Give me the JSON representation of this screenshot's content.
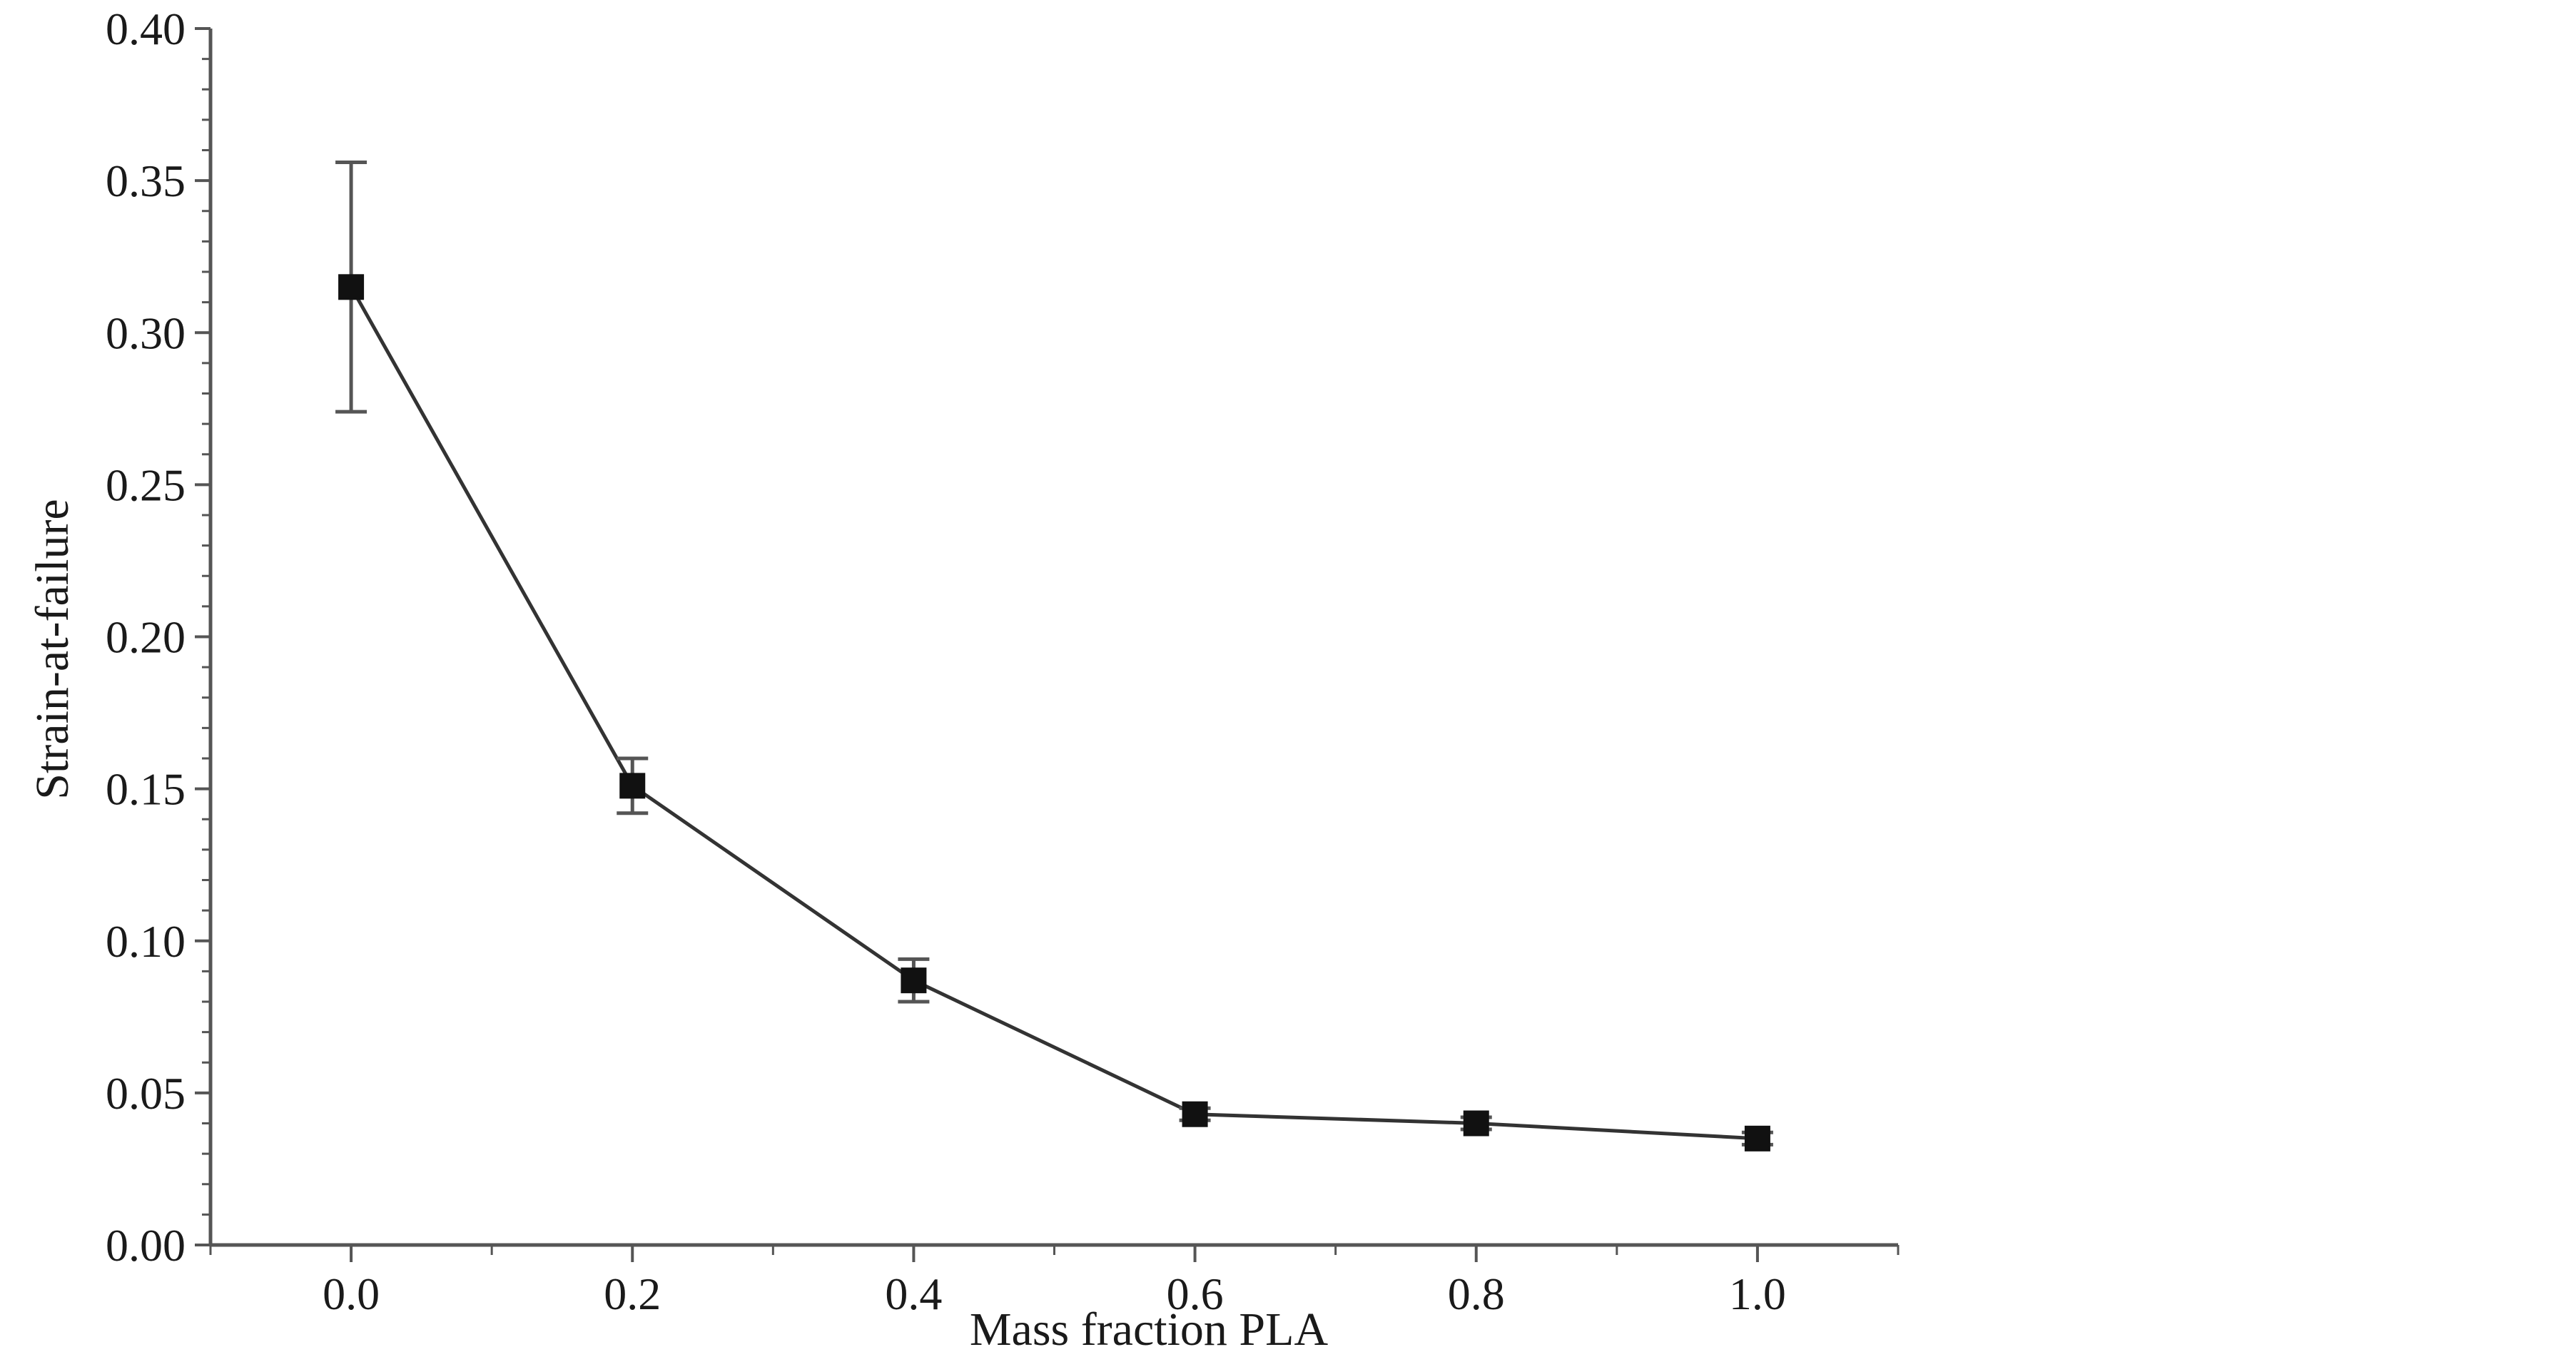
{
  "chart_data": {
    "type": "line",
    "title": "",
    "xlabel": "Mass fraction PLA",
    "ylabel": "Strain-at-failure",
    "xlim": [
      -0.1,
      1.1
    ],
    "ylim": [
      0.0,
      0.4
    ],
    "x_ticks": [
      "0.0",
      "0.2",
      "0.4",
      "0.6",
      "0.8",
      "1.0"
    ],
    "y_ticks": [
      "0.00",
      "0.05",
      "0.10",
      "0.15",
      "0.20",
      "0.25",
      "0.30",
      "0.35",
      "0.40"
    ],
    "grid": false,
    "legend": "none",
    "series": [
      {
        "x": [
          0.0,
          0.2,
          0.4,
          0.6,
          0.8,
          1.0
        ],
        "y": [
          0.315,
          0.151,
          0.087,
          0.043,
          0.04,
          0.035
        ],
        "error": [
          0.041,
          0.009,
          0.007,
          0.002,
          0.002,
          0.002
        ],
        "marker": "square",
        "color": "#111111"
      }
    ]
  }
}
